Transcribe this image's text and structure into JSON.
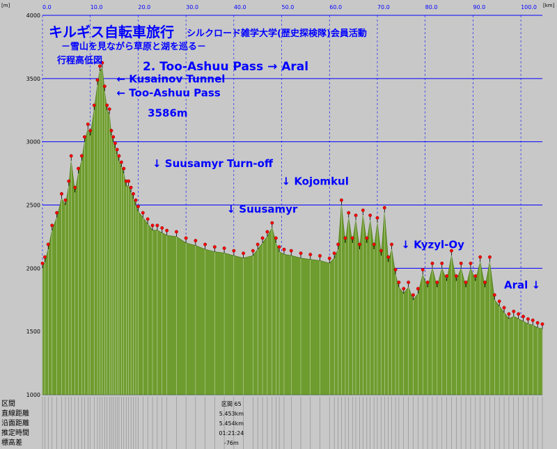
{
  "chart_data": {
    "type": "area",
    "title": "キルギス自転車旅行",
    "title_suffix": "シルクロード雑学大学(歴史探検隊)会員活動",
    "subtitle": "－雪山を見ながら草原と湖を巡る－",
    "chart_label": "行程高低図",
    "stage_title": "2. Too-Ashuu Pass → Aral",
    "x_unit": "[km]",
    "y_unit": "[m]",
    "xlim": [
      0,
      104.5
    ],
    "ylim": [
      1000,
      4000
    ],
    "x_ticks": [
      {
        "value": 0,
        "label": "0.0"
      },
      {
        "value": 10,
        "label": "10.0"
      },
      {
        "value": 20,
        "label": "20.0"
      },
      {
        "value": 30,
        "label": "30.0"
      },
      {
        "value": 40,
        "label": "40.0"
      },
      {
        "value": 50,
        "label": "50.0"
      },
      {
        "value": 60,
        "label": "60.0"
      },
      {
        "value": 70,
        "label": "70.0"
      },
      {
        "value": 80,
        "label": "80.0"
      },
      {
        "value": 90,
        "label": "90.0"
      },
      {
        "value": 100,
        "label": "100.0"
      }
    ],
    "y_ticks": [
      {
        "value": 1000,
        "label": "1000"
      },
      {
        "value": 1500,
        "label": "1500"
      },
      {
        "value": 2000,
        "label": "2000"
      },
      {
        "value": 2500,
        "label": "2500"
      },
      {
        "value": 3000,
        "label": "3000"
      },
      {
        "value": 3500,
        "label": "3500"
      },
      {
        "value": 4000,
        "label": "4000"
      }
    ],
    "grid": true,
    "series": [
      {
        "x": [
          0,
          0.5,
          1.2,
          2.0,
          3.0,
          4.0,
          4.8,
          5.5,
          6.0,
          6.8,
          7.5,
          8.2,
          8.8,
          9.5,
          10.0,
          10.8,
          11.5,
          12.0,
          12.5,
          13.0,
          13.5,
          14.0,
          14.4,
          14.8,
          15.2,
          15.6,
          16.0,
          16.5,
          17.0,
          17.5,
          18.0,
          18.5,
          19.0,
          19.5,
          20.0,
          21.0,
          22.0,
          23.0,
          24.0,
          25.0,
          26.0,
          28.0,
          30.0,
          32.0,
          34.0,
          36.0,
          38.0,
          40.0,
          42.0,
          44.0,
          45.0,
          46.0,
          47.0,
          48.0,
          48.8,
          49.5,
          50.5,
          52.0,
          54.0,
          56.0,
          58.0,
          60.0,
          61.0,
          61.8,
          62.5,
          63.3,
          64.0,
          64.8,
          65.5,
          66.3,
          67.0,
          67.8,
          68.5,
          69.3,
          70.0,
          70.8,
          71.5,
          72.3,
          73.0,
          73.8,
          74.5,
          75.5,
          76.5,
          77.5,
          78.5,
          79.5,
          80.5,
          81.5,
          82.5,
          83.5,
          84.5,
          85.5,
          86.5,
          87.5,
          88.5,
          89.5,
          90.5,
          91.5,
          92.5,
          93.5,
          94.5,
          95.5,
          96.5,
          97.5,
          98.5,
          99.5,
          100.5,
          101.5,
          102.5,
          103.5,
          104.5
        ],
        "y": [
          2000,
          2050,
          2150,
          2300,
          2400,
          2550,
          2500,
          2650,
          2850,
          2600,
          2750,
          2850,
          3000,
          3100,
          3050,
          3250,
          3450,
          3560,
          3586,
          3400,
          3250,
          3220,
          3050,
          3000,
          2950,
          2900,
          2850,
          2800,
          2750,
          2650,
          2650,
          2600,
          2550,
          2500,
          2450,
          2400,
          2350,
          2300,
          2300,
          2280,
          2260,
          2250,
          2200,
          2180,
          2150,
          2130,
          2120,
          2100,
          2080,
          2100,
          2150,
          2200,
          2250,
          2320,
          2200,
          2130,
          2110,
          2100,
          2080,
          2070,
          2060,
          2040,
          2080,
          2150,
          2500,
          2200,
          2400,
          2200,
          2380,
          2150,
          2420,
          2200,
          2380,
          2150,
          2360,
          2100,
          2440,
          2050,
          2150,
          1950,
          1850,
          1800,
          1850,
          1750,
          1800,
          1950,
          1850,
          2000,
          1850,
          2000,
          1900,
          2100,
          1900,
          2000,
          1850,
          2000,
          1900,
          2050,
          1850,
          2050,
          1750,
          1700,
          1650,
          1600,
          1620,
          1600,
          1580,
          1560,
          1550,
          1530,
          1520
        ]
      }
    ],
    "annotations": [
      {
        "x": 15.5,
        "y": 3470,
        "text": "← Kusainov Tunnel"
      },
      {
        "x": 15.5,
        "y": 3360,
        "text": "← Too-Ashuu Pass"
      },
      {
        "x": 22.0,
        "y": 3200,
        "text": "3586m"
      },
      {
        "x": 23.0,
        "y": 2800,
        "text": "↓ Suusamyr Turn-off"
      },
      {
        "x": 38.5,
        "y": 2440,
        "text": "↓ Suusamyr"
      },
      {
        "x": 50.0,
        "y": 2660,
        "text": "↓ Kojomkul"
      },
      {
        "x": 75.0,
        "y": 2160,
        "text": "↓ Kyzyl-Oy"
      },
      {
        "x": 96.5,
        "y": 1840,
        "text": "Aral ↓"
      }
    ],
    "table_rows": [
      {
        "label": "区間"
      },
      {
        "label": "直線距離"
      },
      {
        "label": "沿面距離"
      },
      {
        "label": "推定時間"
      },
      {
        "label": "標高差"
      }
    ],
    "table_samples": [
      {
        "x": 39.5,
        "header": "区間 65",
        "values": [
          "5.453km",
          "5.454km",
          "01:21:24",
          "-76m"
        ]
      }
    ],
    "colors": {
      "fill": "#6e9c2e",
      "waypoint": "#ff0000",
      "grid": "#0000ff",
      "background": "#c8c8c8"
    }
  }
}
